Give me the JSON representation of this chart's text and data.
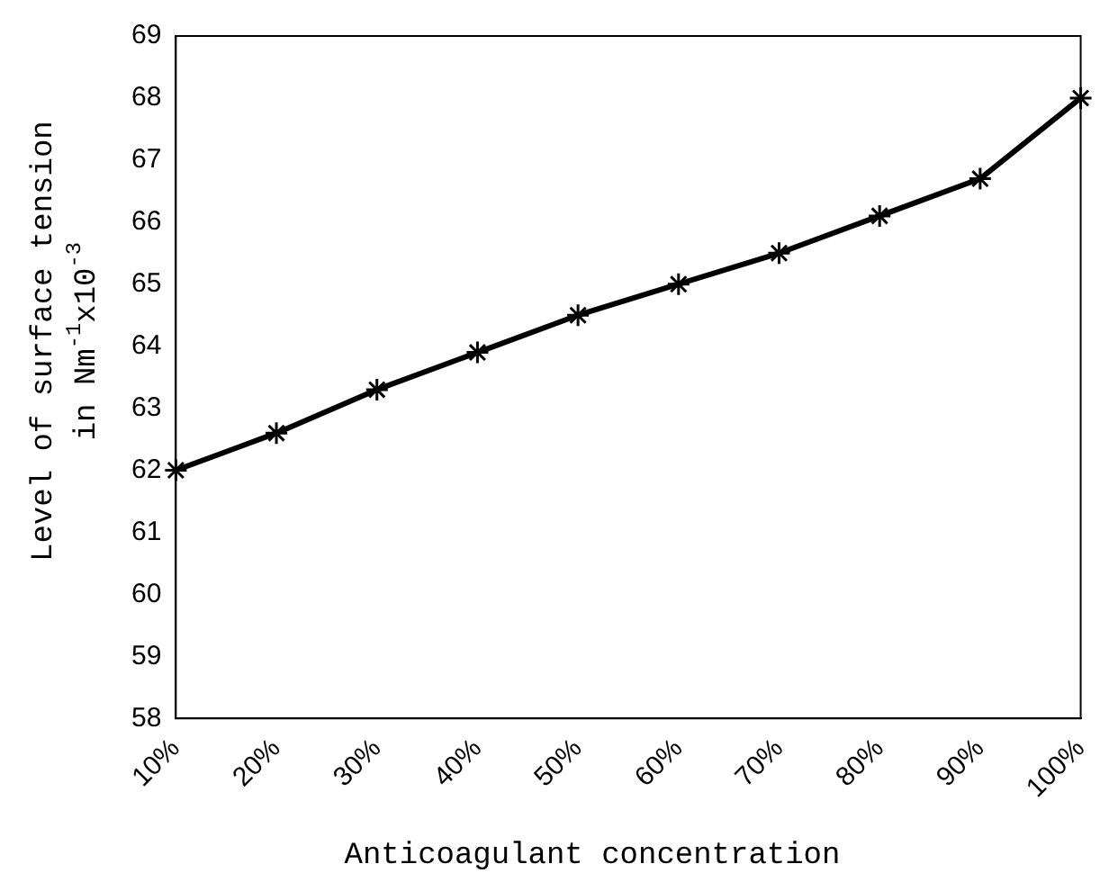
{
  "chart_data": {
    "type": "line",
    "xlabel": "Anticoagulant concentration",
    "ylabel": "Level of surface tension\nin Nm$^{-1}$x10$^{-3}$",
    "categories": [
      "10%",
      "20%",
      "30%",
      "40%",
      "50%",
      "60%",
      "70%",
      "80%",
      "90%",
      "100%"
    ],
    "series": [
      {
        "color": "#000000",
        "values": [
          62.0,
          62.6,
          63.3,
          63.9,
          64.5,
          65.0,
          65.5,
          66.1,
          66.7,
          68.0
        ]
      }
    ],
    "ylim": [
      58,
      69
    ],
    "yticks": [
      58,
      59,
      60,
      61,
      62,
      63,
      64,
      65,
      66,
      67,
      68,
      69
    ],
    "grid": false,
    "legend": false,
    "marker": "cross",
    "line_style": "solid"
  }
}
